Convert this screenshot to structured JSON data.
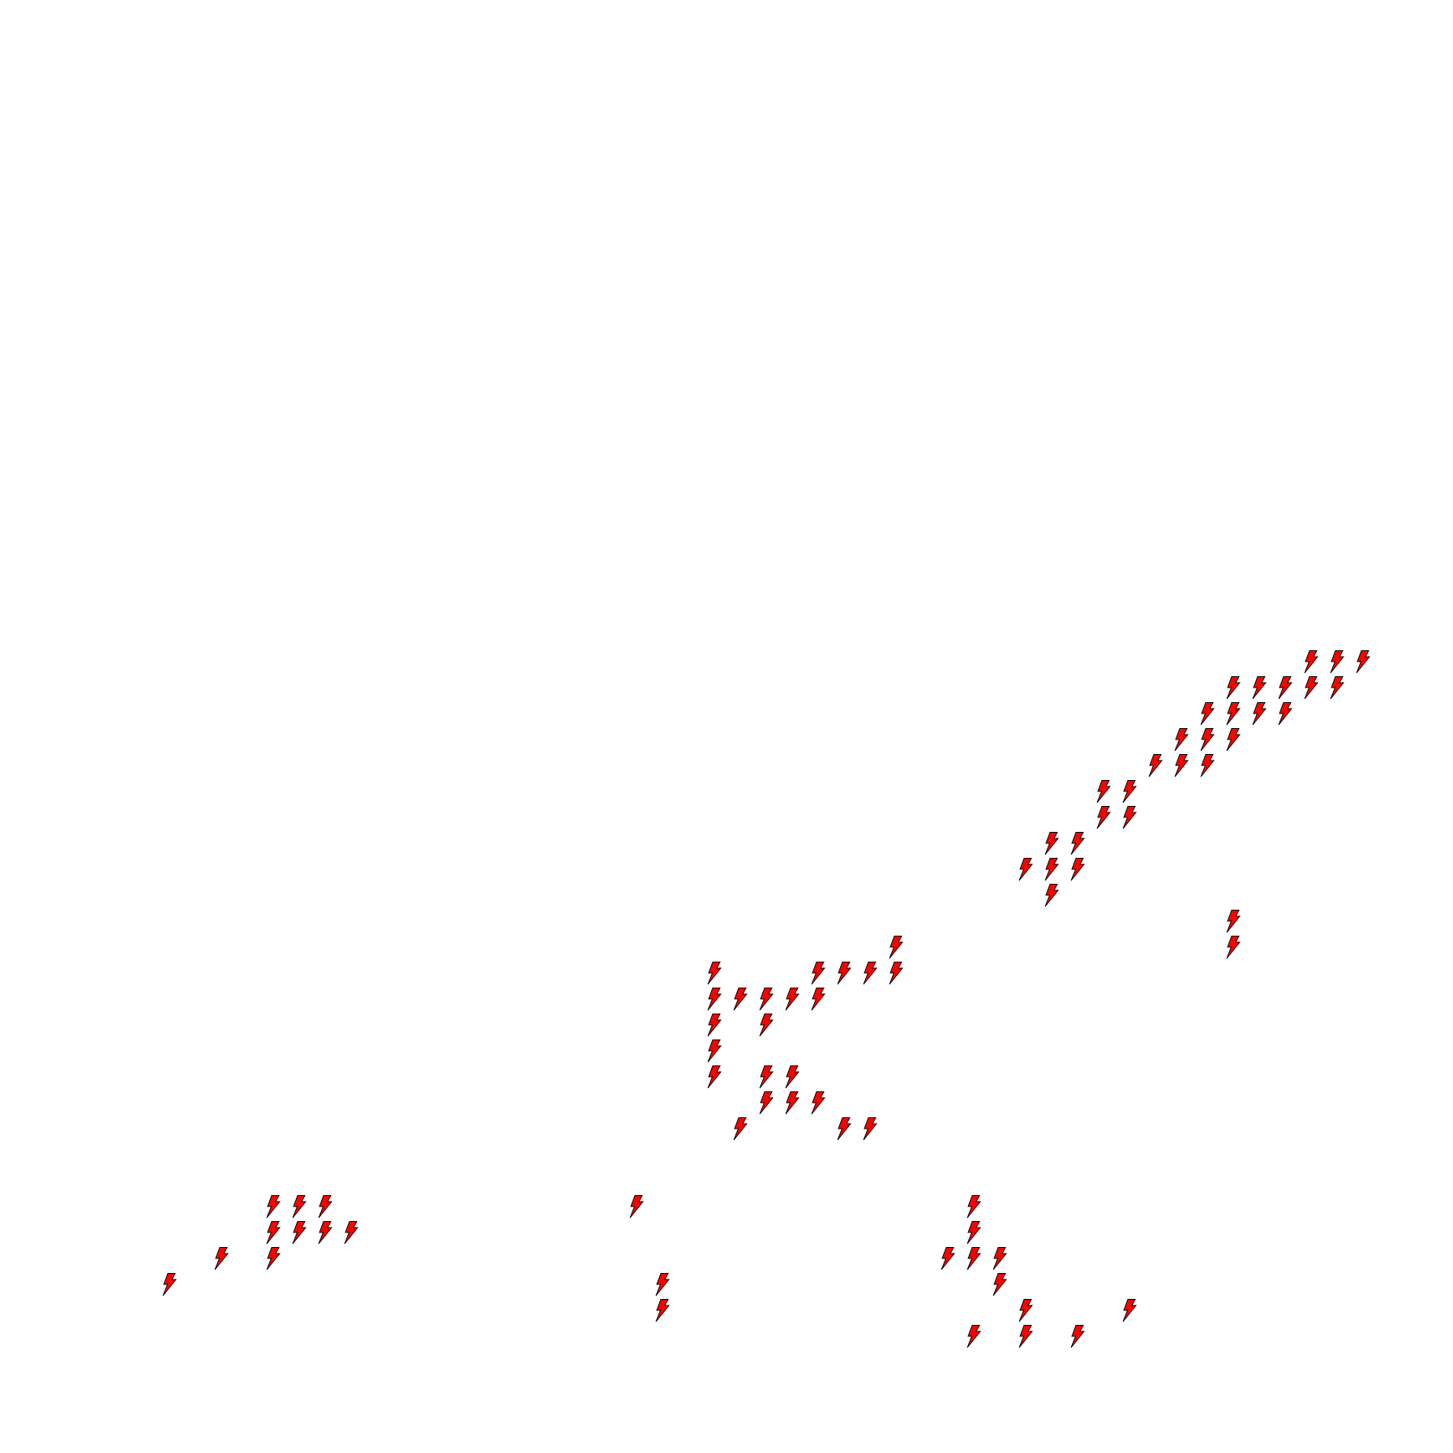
{
  "map": {
    "background": "#ffffff",
    "marker_icon": "lightning-bolt-icon",
    "marker_fill": "#ff0000",
    "marker_stroke": "#000000",
    "grid_cells": [
      [
        50,
        25
      ],
      [
        51,
        25
      ],
      [
        52,
        25
      ],
      [
        47,
        26
      ],
      [
        48,
        26
      ],
      [
        49,
        26
      ],
      [
        50,
        26
      ],
      [
        51,
        26
      ],
      [
        46,
        27
      ],
      [
        47,
        27
      ],
      [
        48,
        27
      ],
      [
        49,
        27
      ],
      [
        45,
        28
      ],
      [
        46,
        28
      ],
      [
        47,
        28
      ],
      [
        44,
        29
      ],
      [
        45,
        29
      ],
      [
        46,
        29
      ],
      [
        42,
        30
      ],
      [
        43,
        30
      ],
      [
        42,
        31
      ],
      [
        43,
        31
      ],
      [
        40,
        32
      ],
      [
        41,
        32
      ],
      [
        39,
        33
      ],
      [
        40,
        33
      ],
      [
        41,
        33
      ],
      [
        40,
        34
      ],
      [
        47,
        35
      ],
      [
        47,
        36
      ],
      [
        34,
        36
      ],
      [
        27,
        37
      ],
      [
        31,
        37
      ],
      [
        32,
        37
      ],
      [
        33,
        37
      ],
      [
        34,
        37
      ],
      [
        27,
        38
      ],
      [
        28,
        38
      ],
      [
        29,
        38
      ],
      [
        30,
        38
      ],
      [
        31,
        38
      ],
      [
        27,
        39
      ],
      [
        29,
        39
      ],
      [
        27,
        40
      ],
      [
        27,
        41
      ],
      [
        29,
        41
      ],
      [
        30,
        41
      ],
      [
        29,
        42
      ],
      [
        30,
        42
      ],
      [
        31,
        42
      ],
      [
        28,
        43
      ],
      [
        32,
        43
      ],
      [
        33,
        43
      ],
      [
        10,
        46
      ],
      [
        11,
        46
      ],
      [
        12,
        46
      ],
      [
        24,
        46
      ],
      [
        37,
        46
      ],
      [
        10,
        47
      ],
      [
        11,
        47
      ],
      [
        12,
        47
      ],
      [
        13,
        47
      ],
      [
        37,
        47
      ],
      [
        8,
        48
      ],
      [
        10,
        48
      ],
      [
        36,
        48
      ],
      [
        37,
        48
      ],
      [
        38,
        48
      ],
      [
        6,
        49
      ],
      [
        25,
        49
      ],
      [
        38,
        49
      ],
      [
        25,
        50
      ],
      [
        39,
        50
      ],
      [
        43,
        50
      ],
      [
        37,
        51
      ],
      [
        39,
        51
      ],
      [
        41,
        51
      ]
    ]
  }
}
